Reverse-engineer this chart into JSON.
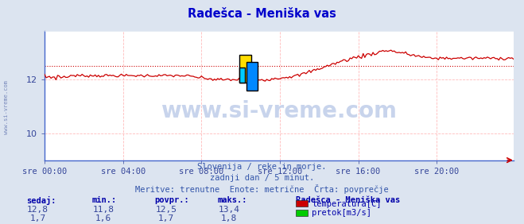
{
  "title": "Radešca - Meniška vas",
  "title_color": "#0000cc",
  "bg_color": "#dce4f0",
  "plot_bg_color": "#ffffff",
  "watermark_text": "www.si-vreme.com",
  "watermark_color": "#c8d4ec",
  "sidebar_text": "www.si-vreme.com",
  "sidebar_color": "#7788bb",
  "xlabel_ticks": [
    "sre 00:00",
    "sre 04:00",
    "sre 08:00",
    "sre 12:00",
    "sre 16:00",
    "sre 20:00"
  ],
  "yticks": [
    10,
    12
  ],
  "ylim": [
    9.0,
    13.8
  ],
  "xlim": [
    0,
    287
  ],
  "grid_color": "#ffbbbb",
  "temp_color": "#cc0000",
  "flow_color": "#00aa00",
  "avg_temp_color": "#cc0000",
  "avg_flow_color": "#00cc00",
  "avg_temp": 12.5,
  "avg_flow": 1.7,
  "temp_min": 11.8,
  "temp_max": 13.4,
  "flow_min": 1.6,
  "flow_max": 1.8,
  "temp_sedaj": 12.8,
  "flow_sedaj": 1.7,
  "info_line1": "Slovenija / reke in morje.",
  "info_line2": "zadnji dan / 5 minut.",
  "info_line3": "Meritve: trenutne  Enote: metrične  Črta: povprečje",
  "info_color": "#3355aa",
  "table_headers": [
    "sedaj:",
    "min.:",
    "povpr.:",
    "maks.:"
  ],
  "table_color": "#0000aa",
  "table_value_color": "#334499",
  "legend_title": "Radešca - Meniška vas",
  "legend_items": [
    "temperatura[C]",
    "pretok[m3/s]"
  ],
  "legend_colors": [
    "#cc0000",
    "#00cc00"
  ],
  "axis_color": "#4466cc",
  "tick_color": "#334499",
  "logo_yellow": "#ffdd00",
  "logo_blue": "#0088ff",
  "logo_cyan": "#00ccff"
}
